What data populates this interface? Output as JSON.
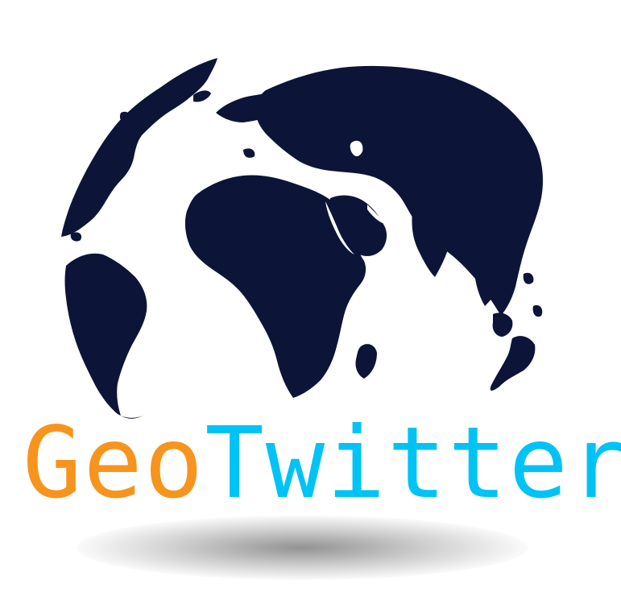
{
  "logo": {
    "word_part_1": "Geo",
    "word_part_2": "Twitter",
    "colors": {
      "geo": "#f7941d",
      "twitter": "#00c3f5",
      "landmass": "#0c1538",
      "background": "#ffffff",
      "shadow": "#8c8c8c"
    },
    "icon": "globe-icon"
  }
}
